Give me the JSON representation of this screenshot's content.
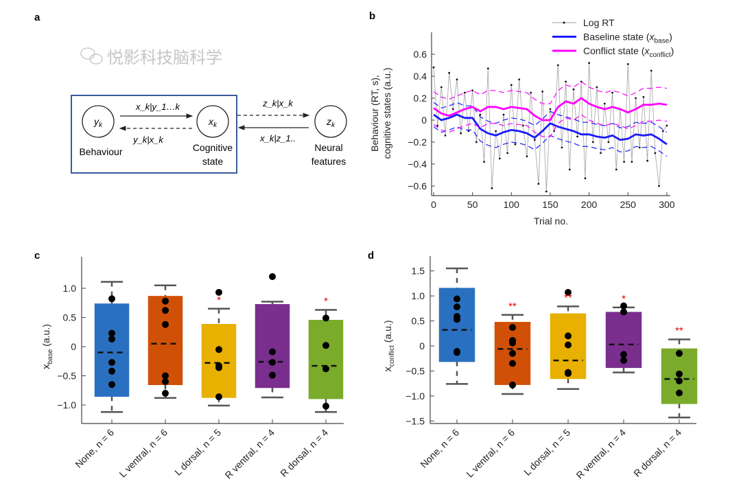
{
  "panel_labels": {
    "a": "a",
    "b": "b",
    "c": "c",
    "d": "d"
  },
  "diagram": {
    "nodes": [
      {
        "var": "y",
        "sub": "k",
        "label1": "Behaviour",
        "label2": ""
      },
      {
        "var": "x",
        "sub": "k",
        "label1": "Cognitive",
        "label2": "state"
      },
      {
        "var": "z",
        "sub": "k",
        "label1": "Neural",
        "label2": "features"
      }
    ],
    "edges": {
      "y_to_x": "x_k|y_1…k",
      "x_to_y": "y_k|x_k",
      "x_to_z": "z_k|x_k",
      "z_to_x": "x_k|z_1.."
    },
    "box_color": "#3a5a9c"
  },
  "chart_data": [
    {
      "id": "b",
      "type": "line",
      "xlabel": "Trial no.",
      "ylabel_line1": "Behaviour (RT, s),",
      "ylabel_line2": "cognitive states (a.u.)",
      "xlim": [
        0,
        300
      ],
      "ylim": [
        -0.7,
        0.75
      ],
      "xticks": [
        0,
        50,
        100,
        150,
        200,
        250,
        300
      ],
      "yticks": [
        -0.6,
        -0.4,
        -0.2,
        0,
        0.2,
        0.4,
        0.6
      ],
      "ytick_labels": [
        "−0.6",
        "−0.4",
        "−0.2",
        "0",
        "0.2",
        "0.4",
        "0.6"
      ],
      "legend_position": "top-right",
      "legend": [
        {
          "text": "Log RT",
          "var": "",
          "sub": "",
          "close": "",
          "color": "#999999"
        },
        {
          "text": "Baseline state (",
          "var": "x",
          "sub": "base",
          "close": ")",
          "color": "#1a1aff"
        },
        {
          "text": "Conflict state (",
          "var": "x",
          "sub": "conflict",
          "close": ")",
          "color": "#ff00ff"
        }
      ],
      "log_rt": {
        "x_step": 5,
        "values": [
          0.48,
          -0.05,
          0.3,
          -0.14,
          0.43,
          0.1,
          0.37,
          -0.12,
          0.25,
          -0.1,
          0.27,
          -0.2,
          0.05,
          -0.38,
          0.47,
          -0.62,
          -0.1,
          -0.35,
          0.05,
          -0.3,
          0.32,
          -0.22,
          0.37,
          -0.05,
          -0.33,
          0.25,
          -0.18,
          -0.58,
          0.26,
          -0.65,
          0.1,
          -0.1,
          0.5,
          -0.25,
          0.35,
          -0.45,
          0.28,
          -0.15,
          0.35,
          -0.53,
          0.52,
          -0.2,
          0.3,
          -0.3,
          0.15,
          -0.2,
          0.25,
          -0.45,
          0.1,
          -0.38,
          0.51,
          -0.38,
          0.2,
          -0.25,
          0.21,
          -0.37,
          0.45,
          -0.3,
          -0.6,
          -0.1,
          -0.05
        ]
      },
      "series": [
        {
          "name": "Baseline state",
          "color": "#1a1aff",
          "ci_halfwidth": 0.11,
          "x_step": 10,
          "values": [
            0.05,
            0.0,
            0.02,
            0.05,
            0.02,
            0.02,
            -0.08,
            -0.12,
            -0.14,
            -0.11,
            -0.09,
            -0.1,
            -0.12,
            -0.16,
            -0.1,
            -0.03,
            -0.06,
            -0.08,
            -0.1,
            -0.13,
            -0.13,
            -0.15,
            -0.16,
            -0.14,
            -0.18,
            -0.17,
            -0.13,
            -0.14,
            -0.13,
            -0.17,
            -0.22
          ]
        },
        {
          "name": "Conflict state",
          "color": "#ff00ff",
          "ci_halfwidth": 0.15,
          "x_step": 10,
          "values": [
            0.11,
            0.06,
            0.04,
            0.07,
            0.1,
            0.12,
            0.08,
            0.12,
            0.12,
            0.1,
            0.12,
            0.11,
            0.1,
            0.04,
            0.0,
            0.0,
            0.12,
            0.17,
            0.15,
            0.2,
            0.15,
            0.12,
            0.1,
            0.12,
            0.1,
            0.07,
            0.1,
            0.14,
            0.14,
            0.15,
            0.14
          ]
        }
      ]
    },
    {
      "id": "c",
      "type": "box",
      "ylabel_var": "x",
      "ylabel_sub": "base",
      "ylabel_unit": " (a.u.)",
      "ylim": [
        -1.3,
        1.55
      ],
      "yticks": [
        -1.0,
        -0.5,
        0,
        0.5,
        1.0
      ],
      "ytick_labels": [
        "−1.0",
        "−0.5",
        "0",
        "0.5",
        "1.0"
      ],
      "categories": [
        "None, n = 6",
        "L ventral, n = 6",
        "L dorsal, n = 5",
        "R ventral, n = 4",
        "R dorsal, n = 4"
      ],
      "colors": [
        "#2a70c0",
        "#d05008",
        "#e8b000",
        "#7a2e8e",
        "#7aab2a"
      ],
      "boxes": [
        {
          "q1": -0.85,
          "q3": 0.73,
          "mean": -0.1,
          "wlo": -1.12,
          "whi": 1.11,
          "points": [
            0.82,
            0.23,
            0.13,
            -0.27,
            -0.42,
            -0.65
          ],
          "sig": ""
        },
        {
          "q1": -0.65,
          "q3": 0.86,
          "mean": 0.05,
          "wlo": -0.88,
          "whi": 1.05,
          "points": [
            0.78,
            0.62,
            0.38,
            -0.5,
            -0.6,
            -0.8
          ],
          "sig": ""
        },
        {
          "q1": -0.87,
          "q3": 0.38,
          "mean": -0.28,
          "wlo": -1.01,
          "whi": 0.65,
          "points": [
            0.93,
            -0.05,
            -0.33,
            -0.36,
            -0.86
          ],
          "sig": "*"
        },
        {
          "q1": -0.7,
          "q3": 0.72,
          "mean": -0.26,
          "wlo": -0.87,
          "whi": 0.77,
          "points": [
            1.2,
            -0.09,
            -0.27,
            -0.49
          ],
          "sig": ""
        },
        {
          "q1": -0.89,
          "q3": 0.45,
          "mean": -0.33,
          "wlo": -1.12,
          "whi": 0.63,
          "points": [
            0.49,
            0.02,
            -0.38,
            -1.02
          ],
          "sig": "*"
        }
      ]
    },
    {
      "id": "d",
      "type": "box",
      "ylabel_var": "x",
      "ylabel_sub": "conflict",
      "ylabel_unit": " (a.u.)",
      "ylim": [
        -1.6,
        1.8
      ],
      "yticks": [
        -1.5,
        -1.0,
        -0.5,
        0,
        0.5,
        1.0,
        1.5
      ],
      "ytick_labels": [
        "−1.5",
        "−1.0",
        "−0.5",
        "0",
        "0.5",
        "1.0",
        "1.5"
      ],
      "categories": [
        "None, n = 6",
        "L ventral, n = 6",
        "L dorsal, n = 5",
        "R ventral, n = 4",
        "R dorsal, n = 4"
      ],
      "colors": [
        "#2a70c0",
        "#d05008",
        "#e8b000",
        "#7a2e8e",
        "#7aab2a"
      ],
      "boxes": [
        {
          "q1": -0.31,
          "q3": 1.15,
          "mean": 0.32,
          "wlo": -0.76,
          "whi": 1.55,
          "points": [
            0.94,
            0.78,
            0.59,
            0.53,
            -0.11,
            -0.13
          ],
          "sig": ""
        },
        {
          "q1": -0.77,
          "q3": 0.47,
          "mean": -0.06,
          "wlo": -0.96,
          "whi": 0.62,
          "points": [
            0.37,
            0.11,
            0.06,
            -0.15,
            -0.35,
            -0.78
          ],
          "sig": "**"
        },
        {
          "q1": -0.65,
          "q3": 0.64,
          "mean": -0.29,
          "wlo": -0.86,
          "whi": 0.79,
          "points": [
            1.07,
            0.2,
            0.02,
            -0.53,
            -0.55
          ],
          "sig": "**"
        },
        {
          "q1": -0.43,
          "q3": 0.67,
          "mean": 0.03,
          "wlo": -0.53,
          "whi": 0.77,
          "points": [
            0.8,
            0.68,
            -0.17,
            -0.29
          ],
          "sig": "*"
        },
        {
          "q1": -1.15,
          "q3": -0.06,
          "mean": -0.66,
          "wlo": -1.43,
          "whi": 0.13,
          "points": [
            -0.15,
            -0.56,
            -0.7,
            -0.94
          ],
          "sig": "**"
        }
      ]
    }
  ],
  "watermark": "悦影科技脑科学"
}
